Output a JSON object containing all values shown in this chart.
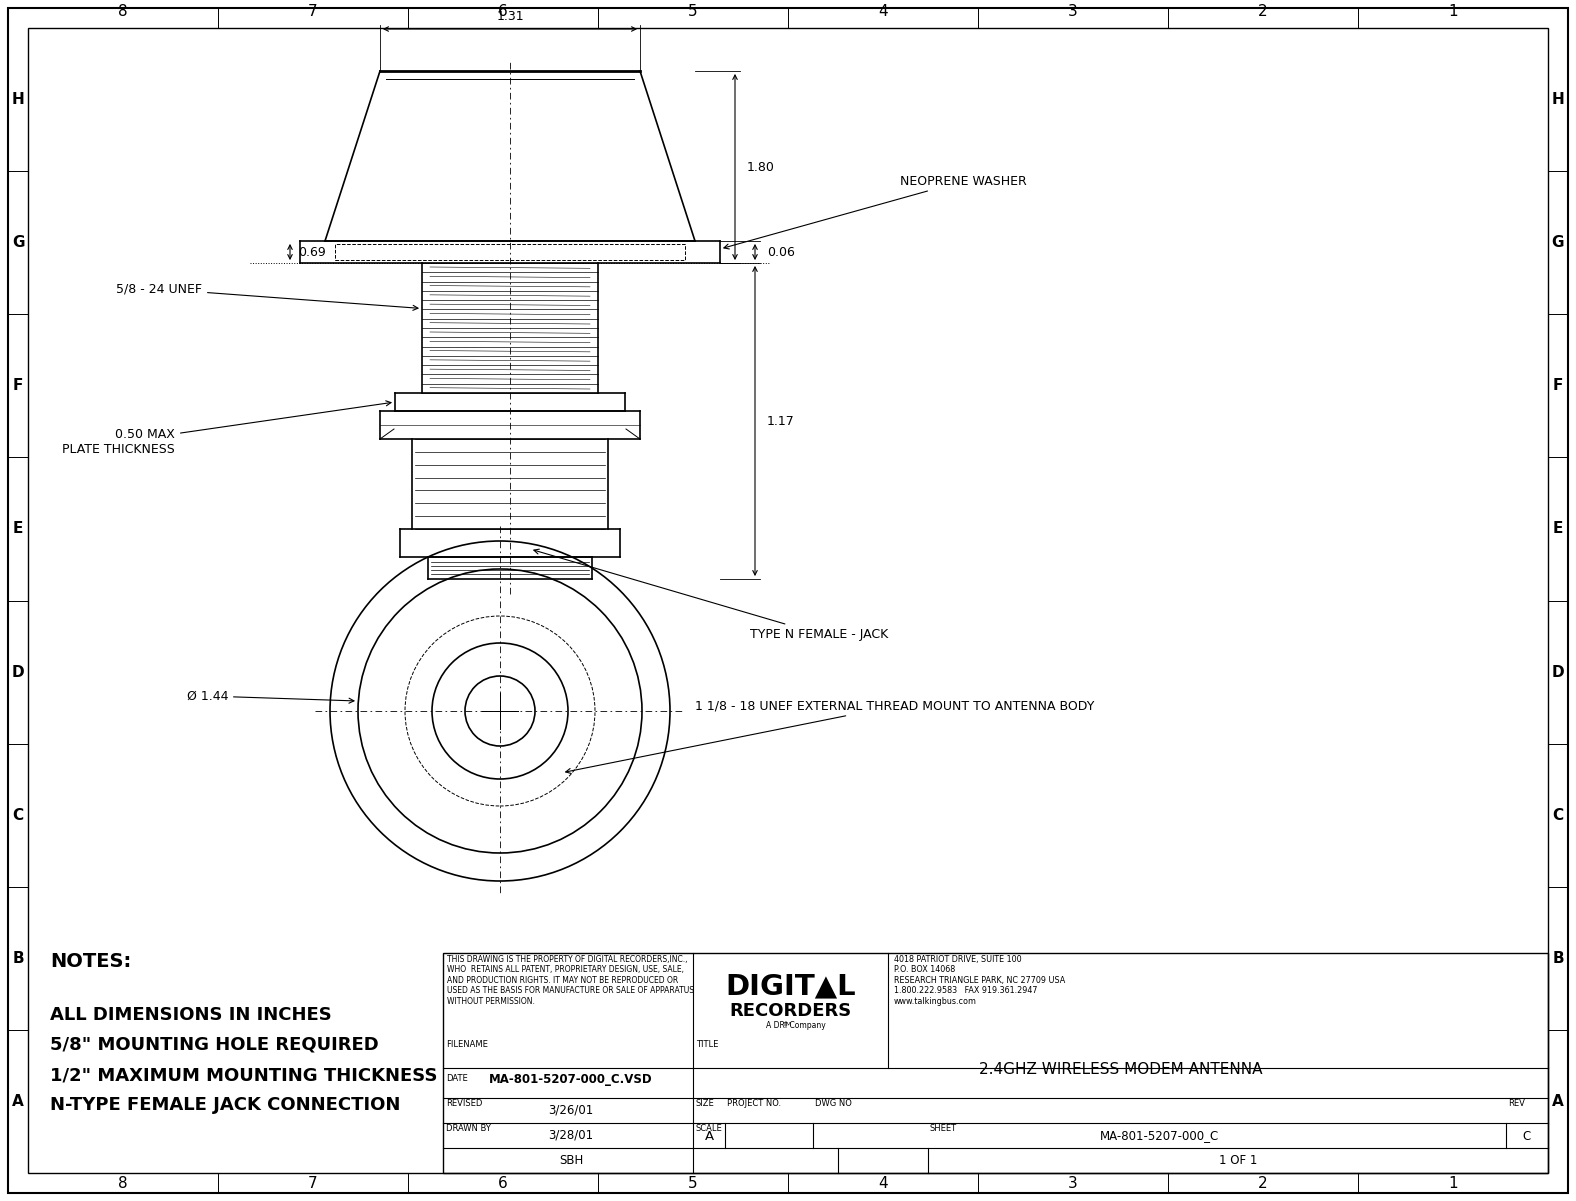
{
  "bg_color": "#ffffff",
  "line_color": "#000000",
  "title": "2.4GHZ WIRELESS MODEM ANTENNA",
  "filename": "MA-801-5207-000_C.VSD",
  "date": "3/26/01",
  "revised": "3/28/01",
  "drawn_by": "SBH",
  "size": "A",
  "dwg_no": "MA-801-5207-000_C",
  "rev": "C",
  "sheet": "1 OF 1",
  "scale": "",
  "project_no": "",
  "col_labels": [
    "8",
    "7",
    "6",
    "5",
    "4",
    "3",
    "2",
    "1"
  ],
  "row_labels": [
    "H",
    "G",
    "F",
    "E",
    "D",
    "C",
    "B",
    "A"
  ],
  "company_address": "4018 PATRIOT DRIVE, SUITE 100\nP.O. BOX 14068\nRESEARCH TRIANGLE PARK, NC 27709 USA\n1.800.222.9583   FAX 919.361.2947\nwww.talkingbus.com",
  "legal_text": "THIS DRAWING IS THE PROPERTY OF DIGITAL RECORDERS,INC.,\nWHO  RETAINS ALL PATENT, PROPRIETARY DESIGN, USE, SALE,\nAND PRODUCTION RIGHTS. IT MAY NOT BE REPRODUCED OR\nUSED AS THE BASIS FOR MANUFACTURE OR SALE OF APPARATUS\nWITHOUT PERMISSION.",
  "notes_title": "NOTES:",
  "notes": [
    "ALL DIMENSIONS IN INCHES",
    "5/8\" MOUNTING HOLE REQUIRED",
    "1/2\" MAXIMUM MOUNTING THICKNESS",
    "N-TYPE FEMALE JACK CONNECTION"
  ],
  "dim_131": "1.31",
  "dim_180": "1.80",
  "dim_069": "0.69",
  "dim_006": "0.06",
  "dim_117": "1.17",
  "dim_050": "0.50 MAX\nPLATE THICKNESS",
  "dim_144": "Ø 1.44",
  "label_neoprene": "NEOPRENE WASHER",
  "label_type_n": "TYPE N FEMALE - JACK",
  "label_thread": "1 1/8 - 18 UNEF EXTERNAL THREAD MOUNT TO ANTENNA BODY",
  "label_5_8": "5/8 - 24 UNEF"
}
